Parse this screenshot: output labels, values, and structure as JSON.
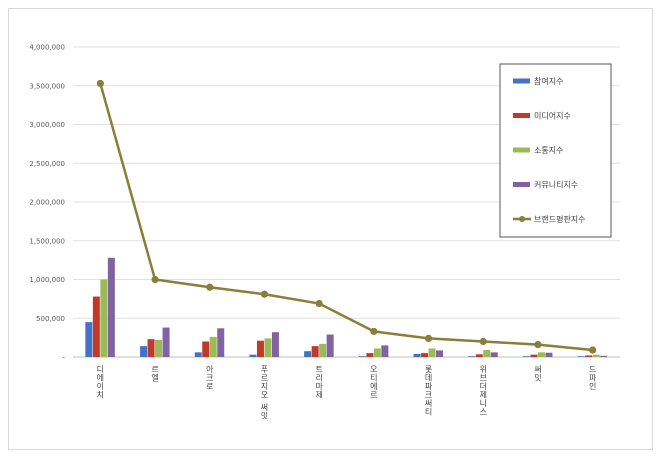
{
  "chart_data": {
    "type": "bar",
    "categories": [
      "디에이치",
      "르엘",
      "아크로",
      "푸르지오 써밋",
      "트리마제",
      "오티에르",
      "롯데파크써티",
      "위브더제니스",
      "써밋",
      "드파인"
    ],
    "ylim": [
      0,
      4000000
    ],
    "yticks": [
      0,
      500000,
      1000000,
      1500000,
      2000000,
      2500000,
      3000000,
      3500000,
      4000000
    ],
    "ytick_labels": [
      "-",
      "500,000",
      "1,000,000",
      "1,500,000",
      "2,000,000",
      "2,500,000",
      "3,000,000",
      "3,500,000",
      "4,000,000"
    ],
    "grid": true,
    "legend": "right",
    "series": [
      {
        "name": "참여지수",
        "color": "#4472c4",
        "values": [
          450000,
          140000,
          60000,
          30000,
          75000,
          10000,
          40000,
          10000,
          10000,
          10000
        ]
      },
      {
        "name": "미디어지수",
        "color": "#c0392b",
        "values": [
          780000,
          230000,
          200000,
          210000,
          140000,
          50000,
          50000,
          35000,
          30000,
          20000
        ]
      },
      {
        "name": "소통지수",
        "color": "#9bbb59",
        "values": [
          1000000,
          220000,
          260000,
          240000,
          170000,
          110000,
          110000,
          90000,
          60000,
          30000
        ]
      },
      {
        "name": "커뮤니티지수",
        "color": "#8064a2",
        "values": [
          1280000,
          380000,
          370000,
          320000,
          290000,
          150000,
          85000,
          60000,
          55000,
          15000
        ]
      },
      {
        "name": "브랜드평판지수",
        "color": "#8b7d3a",
        "type": "line",
        "values": [
          3530000,
          1000000,
          900000,
          810000,
          690000,
          330000,
          240000,
          200000,
          160000,
          90000
        ]
      }
    ]
  }
}
